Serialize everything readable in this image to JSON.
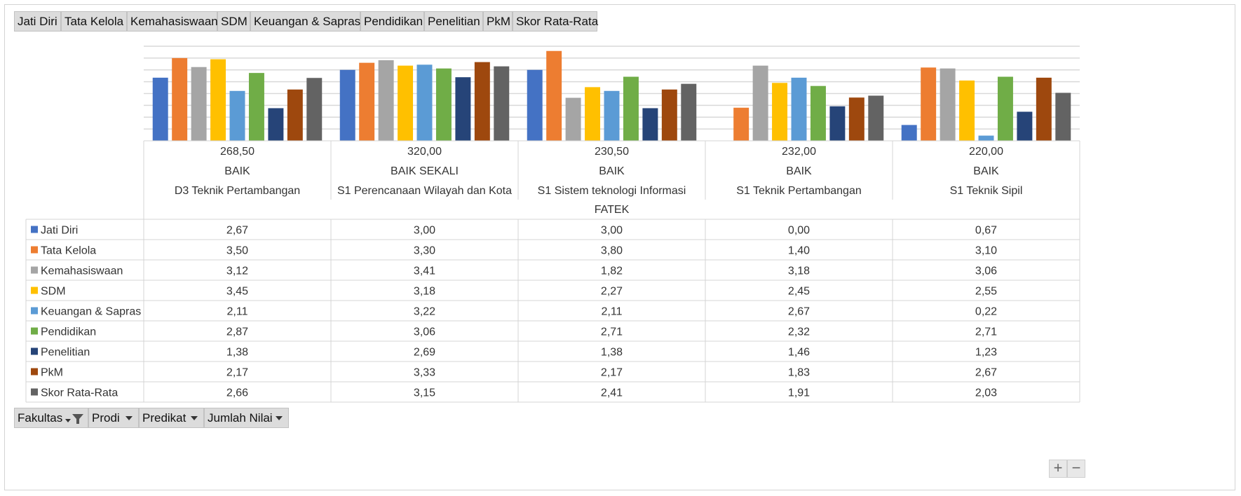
{
  "top_fields": [
    "Jati Diri",
    "Tata Kelola",
    "Kemahasiswaan",
    "SDM",
    "Keuangan  & Sapras",
    "Pendidikan",
    "Penelitian",
    "PkM",
    "Skor Rata-Rata"
  ],
  "bottom_fields": [
    "Fakultas",
    "Prodi",
    "Predikat",
    "Jumlah  Nilai"
  ],
  "zoom": {
    "plus": "+",
    "minus": "−"
  },
  "colors": {
    "Jati Diri": "#4472C4",
    "Tata Kelola": "#ED7D31",
    "Kemahasiswaan": "#A5A5A5",
    "SDM": "#FFC000",
    "Keuangan & Sapras": "#5B9BD5",
    "Pendidikan": "#70AD47",
    "Penelitian": "#264478",
    "PkM": "#9E480E",
    "Skor Rata-Rata": "#636363"
  },
  "chart_data": {
    "type": "bar",
    "title": "",
    "xlabel": "",
    "ylabel": "",
    "ylim": [
      0,
      4
    ],
    "grid": true,
    "legend_placement": "left of data table",
    "faculty": "FATEK",
    "categories": [
      {
        "jumlah_nilai": "268,50",
        "predikat": "BAIK",
        "prodi": "D3 Teknik Pertambangan"
      },
      {
        "jumlah_nilai": "320,00",
        "predikat": "BAIK SEKALI",
        "prodi": "S1 Perencanaan Wilayah dan Kota"
      },
      {
        "jumlah_nilai": "230,50",
        "predikat": "BAIK",
        "prodi": "S1 Sistem teknologi Informasi"
      },
      {
        "jumlah_nilai": "232,00",
        "predikat": "BAIK",
        "prodi": "S1 Teknik Pertambangan"
      },
      {
        "jumlah_nilai": "220,00",
        "predikat": "BAIK",
        "prodi": "S1 Teknik Sipil"
      }
    ],
    "series": [
      {
        "name": "Jati Diri",
        "values": [
          2.67,
          3.0,
          3.0,
          0.0,
          0.67
        ],
        "labels": [
          "2,67",
          "3,00",
          "3,00",
          "0,00",
          "0,67"
        ]
      },
      {
        "name": "Tata Kelola",
        "values": [
          3.5,
          3.3,
          3.8,
          1.4,
          3.1
        ],
        "labels": [
          "3,50",
          "3,30",
          "3,80",
          "1,40",
          "3,10"
        ]
      },
      {
        "name": "Kemahasiswaan",
        "values": [
          3.12,
          3.41,
          1.82,
          3.18,
          3.06
        ],
        "labels": [
          "3,12",
          "3,41",
          "1,82",
          "3,18",
          "3,06"
        ]
      },
      {
        "name": "SDM",
        "values": [
          3.45,
          3.18,
          2.27,
          2.45,
          2.55
        ],
        "labels": [
          "3,45",
          "3,18",
          "2,27",
          "2,45",
          "2,55"
        ]
      },
      {
        "name": "Keuangan & Sapras",
        "values": [
          2.11,
          3.22,
          2.11,
          2.67,
          0.22
        ],
        "labels": [
          "2,11",
          "3,22",
          "2,11",
          "2,67",
          "0,22"
        ]
      },
      {
        "name": "Pendidikan",
        "values": [
          2.87,
          3.06,
          2.71,
          2.32,
          2.71
        ],
        "labels": [
          "2,87",
          "3,06",
          "2,71",
          "2,32",
          "2,71"
        ]
      },
      {
        "name": "Penelitian",
        "values": [
          1.38,
          2.69,
          1.38,
          1.46,
          1.23
        ],
        "labels": [
          "1,38",
          "2,69",
          "1,38",
          "1,46",
          "1,23"
        ]
      },
      {
        "name": "PkM",
        "values": [
          2.17,
          3.33,
          2.17,
          1.83,
          2.67
        ],
        "labels": [
          "2,17",
          "3,33",
          "2,17",
          "1,83",
          "2,67"
        ]
      },
      {
        "name": "Skor Rata-Rata",
        "values": [
          2.66,
          3.15,
          2.41,
          1.91,
          2.03
        ],
        "labels": [
          "2,66",
          "3,15",
          "2,41",
          "1,91",
          "2,03"
        ]
      }
    ]
  }
}
